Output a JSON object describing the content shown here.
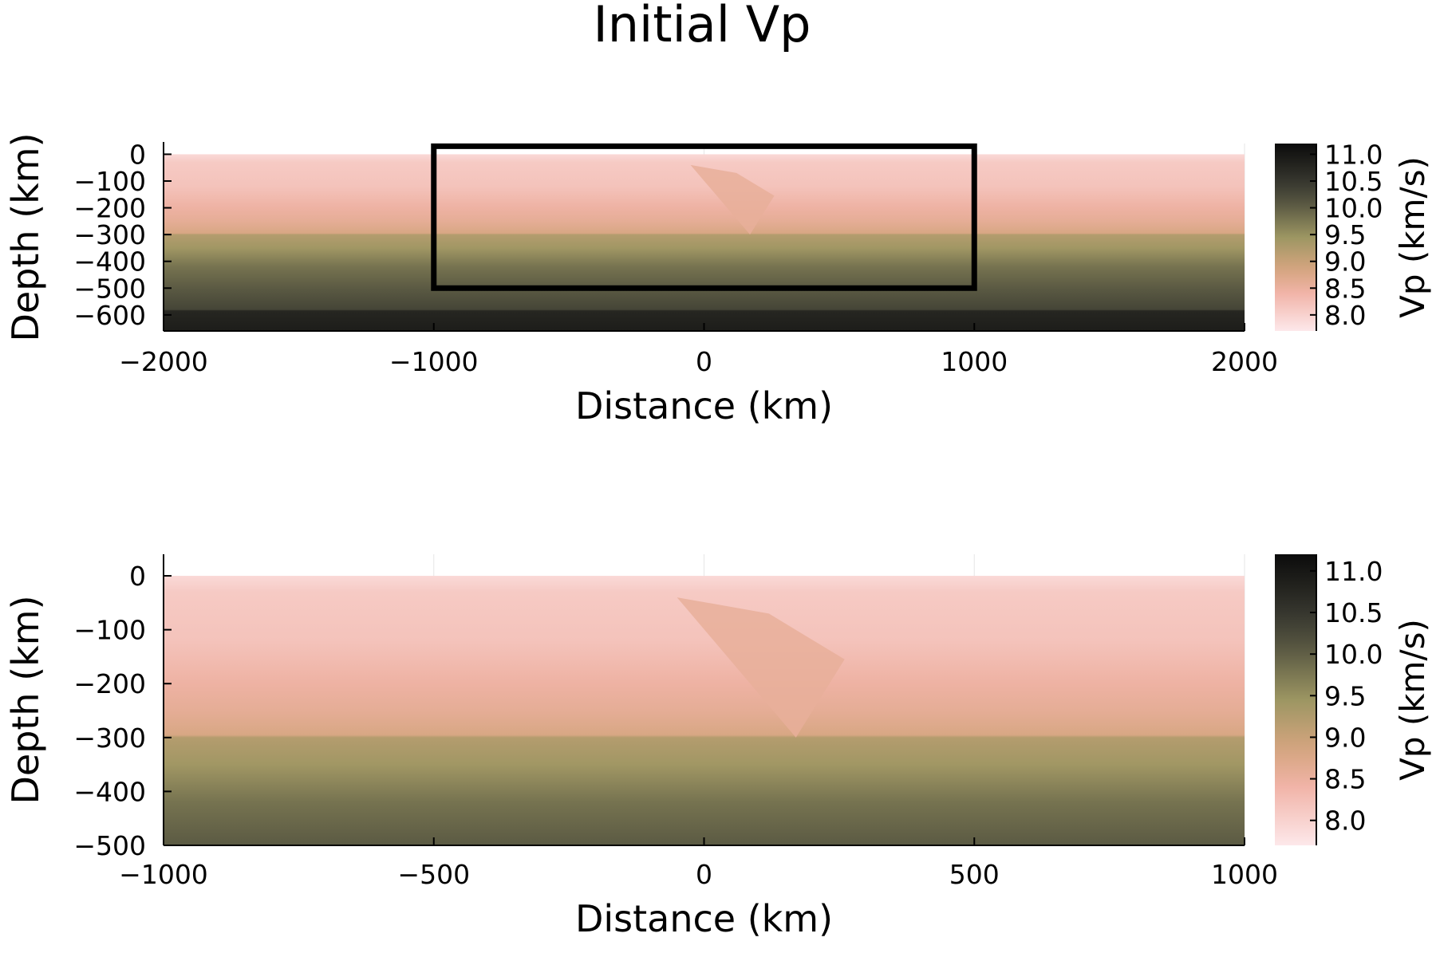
{
  "chart_data": {
    "title": "Initial Vp",
    "type": "heatmap",
    "colormap": [
      "#fde8ea",
      "#f1b4a8",
      "#d5a57f",
      "#9c9662",
      "#5b5a43",
      "#3a3a31",
      "#0b0b0b"
    ],
    "colormap_positions": [
      0.0,
      0.2,
      0.33,
      0.5,
      0.67,
      0.78,
      1.0
    ],
    "panels": [
      {
        "xlabel": "Distance (km)",
        "ylabel": "Depth (km)",
        "xlim": [
          -2000,
          2000
        ],
        "ylim": [
          -660,
          40
        ],
        "xticks": [
          -2000,
          -1000,
          0,
          1000,
          2000
        ],
        "xtick_labels": [
          "−2000",
          "−1000",
          "0",
          "1000",
          "2000"
        ],
        "yticks": [
          0,
          -100,
          -200,
          -300,
          -400,
          -500,
          -600
        ],
        "ytick_labels": [
          "0",
          "−100",
          "−200",
          "−300",
          "−400",
          "−500",
          "−600"
        ],
        "grid": true,
        "depth_profile": {
          "depth": [
            0,
            -15,
            -30,
            -120,
            -200,
            -250,
            -295,
            -300,
            -350,
            -420,
            -500,
            -580,
            -585,
            -660
          ],
          "vp": [
            7.9,
            8.0,
            8.1,
            8.2,
            8.45,
            8.6,
            8.8,
            9.2,
            9.4,
            9.8,
            10.05,
            10.3,
            10.75,
            10.9
          ]
        },
        "anomaly": {
          "polygon_x": [
            -50,
            120,
            260,
            170
          ],
          "polygon_y": [
            -40,
            -70,
            -155,
            -300
          ],
          "vp": 8.55
        },
        "box": {
          "x": [
            -1000,
            1000
          ],
          "y": [
            -500,
            30
          ],
          "color": "#000000"
        },
        "colorbar": {
          "label": "Vp (km/s)",
          "range": [
            7.7,
            11.2
          ],
          "ticks": [
            8.0,
            8.5,
            9.0,
            9.5,
            10.0,
            10.5,
            11.0
          ],
          "tick_labels": [
            "8.0",
            "8.5",
            "9.0",
            "9.5",
            "10.0",
            "10.5",
            "11.0"
          ]
        }
      },
      {
        "xlabel": "Distance (km)",
        "ylabel": "Depth (km)",
        "xlim": [
          -1000,
          1000
        ],
        "ylim": [
          -500,
          40
        ],
        "xticks": [
          -1000,
          -500,
          0,
          500,
          1000
        ],
        "xtick_labels": [
          "−1000",
          "−500",
          "0",
          "500",
          "1000"
        ],
        "yticks": [
          0,
          -100,
          -200,
          -300,
          -400,
          -500
        ],
        "ytick_labels": [
          "0",
          "−100",
          "−200",
          "−300",
          "−400",
          "−500"
        ],
        "grid": true,
        "depth_profile": {
          "depth": [
            0,
            -15,
            -30,
            -120,
            -200,
            -250,
            -295,
            -300,
            -350,
            -420,
            -500
          ],
          "vp": [
            7.9,
            8.0,
            8.1,
            8.2,
            8.45,
            8.6,
            8.8,
            9.2,
            9.4,
            9.8,
            10.05
          ]
        },
        "anomaly": {
          "polygon_x": [
            -50,
            120,
            260,
            170
          ],
          "polygon_y": [
            -40,
            -70,
            -155,
            -300
          ],
          "vp": 8.55
        },
        "colorbar": {
          "label": "Vp (km/s)",
          "range": [
            7.7,
            11.2
          ],
          "ticks": [
            8.0,
            8.5,
            9.0,
            9.5,
            10.0,
            10.5,
            11.0
          ],
          "tick_labels": [
            "8.0",
            "8.5",
            "9.0",
            "9.5",
            "10.0",
            "10.5",
            "11.0"
          ]
        }
      }
    ]
  }
}
